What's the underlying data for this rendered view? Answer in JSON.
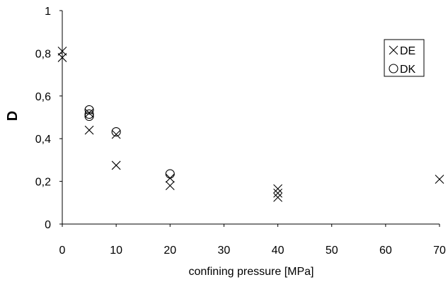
{
  "chart_data": {
    "type": "scatter",
    "title": "",
    "xlabel": "confining pressure [MPa]",
    "ylabel": "D",
    "xlim": [
      0,
      70
    ],
    "ylim": [
      0,
      1
    ],
    "xticks": [
      "0",
      "10",
      "20",
      "30",
      "40",
      "50",
      "60",
      "70"
    ],
    "yticks": [
      "0",
      "0,2",
      "0,4",
      "0,6",
      "0,8",
      "1"
    ],
    "grid": false,
    "legend_position": "top-right",
    "series": [
      {
        "name": "DE",
        "marker": "x",
        "x": [
          0,
          0,
          5,
          5,
          10,
          10,
          20,
          20,
          40,
          40,
          40,
          70
        ],
        "y": [
          0.81,
          0.78,
          0.52,
          0.44,
          0.42,
          0.275,
          0.215,
          0.18,
          0.165,
          0.145,
          0.125,
          0.21
        ]
      },
      {
        "name": "DK",
        "marker": "o",
        "x": [
          5,
          5,
          5,
          10,
          20
        ],
        "y": [
          0.535,
          0.515,
          0.505,
          0.432,
          0.235
        ]
      }
    ]
  },
  "colors": {
    "marker": "#000000",
    "axis": "#000000"
  }
}
